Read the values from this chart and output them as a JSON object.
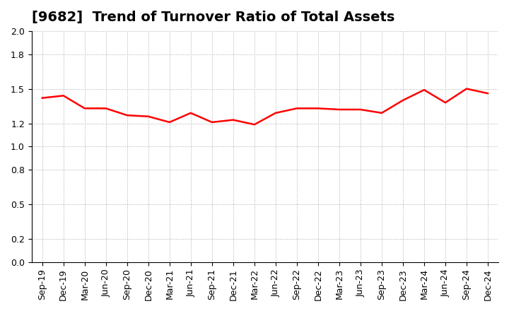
{
  "title": "[9682]  Trend of Turnover Ratio of Total Assets",
  "x_labels": [
    "Sep-19",
    "Dec-19",
    "Mar-20",
    "Jun-20",
    "Sep-20",
    "Dec-20",
    "Mar-21",
    "Jun-21",
    "Sep-21",
    "Dec-21",
    "Mar-22",
    "Jun-22",
    "Sep-22",
    "Dec-22",
    "Mar-23",
    "Jun-23",
    "Sep-23",
    "Dec-23",
    "Mar-24",
    "Jun-24",
    "Sep-24",
    "Dec-24"
  ],
  "y_values": [
    1.42,
    1.44,
    1.33,
    1.33,
    1.27,
    1.26,
    1.21,
    1.29,
    1.21,
    1.23,
    1.19,
    1.29,
    1.33,
    1.33,
    1.32,
    1.32,
    1.29,
    1.4,
    1.49,
    1.38,
    1.5,
    1.46
  ],
  "line_color": "#ff0000",
  "line_width": 1.8,
  "ylim": [
    0.0,
    2.0
  ],
  "yticks": [
    0.0,
    0.2,
    0.5,
    0.8,
    1.0,
    1.2,
    1.5,
    1.8,
    2.0
  ],
  "grid_color": "#aaaaaa",
  "background_color": "#ffffff",
  "title_fontsize": 14,
  "tick_fontsize": 9
}
